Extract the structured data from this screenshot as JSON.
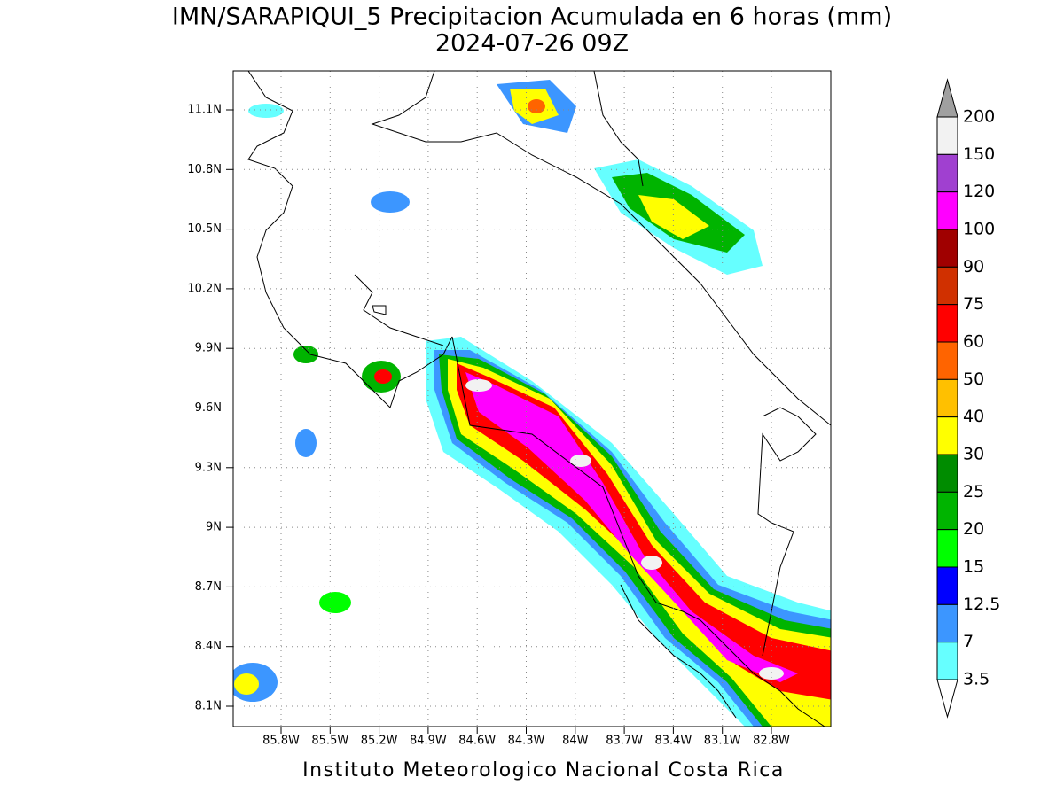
{
  "header": {
    "title": "IMN/SARAPIQUI_5 Precipitacion Acumulada en 6 horas (mm)",
    "subtitle": "2024-07-26 09Z"
  },
  "map": {
    "lat_labels": [
      "11.1N",
      "10.8N",
      "10.5N",
      "10.2N",
      "9.9N",
      "9.6N",
      "9.3N",
      "9N",
      "8.7N",
      "8.4N",
      "8.1N"
    ],
    "lon_labels": [
      "85.8W",
      "85.5W",
      "85.2W",
      "84.9W",
      "84.6W",
      "84.3W",
      "84W",
      "83.7W",
      "83.4W",
      "83.1W",
      "82.8W"
    ]
  },
  "colorbar": {
    "levels": [
      200,
      150,
      120,
      100,
      90,
      75,
      60,
      50,
      40,
      30,
      25,
      20,
      15,
      12.5,
      7,
      3.5
    ],
    "colors": [
      "#a0a0a0",
      "#f2f2f2",
      "#a040d0",
      "#ff00ff",
      "#a00000",
      "#d03000",
      "#ff0000",
      "#ff6400",
      "#ffc000",
      "#ffff00",
      "#008c00",
      "#00b400",
      "#00ff00",
      "#0000ff",
      "#3c96ff",
      "#66ffff",
      "#ffffff"
    ]
  },
  "footer": "Instituto Meteorologico Nacional Costa Rica"
}
